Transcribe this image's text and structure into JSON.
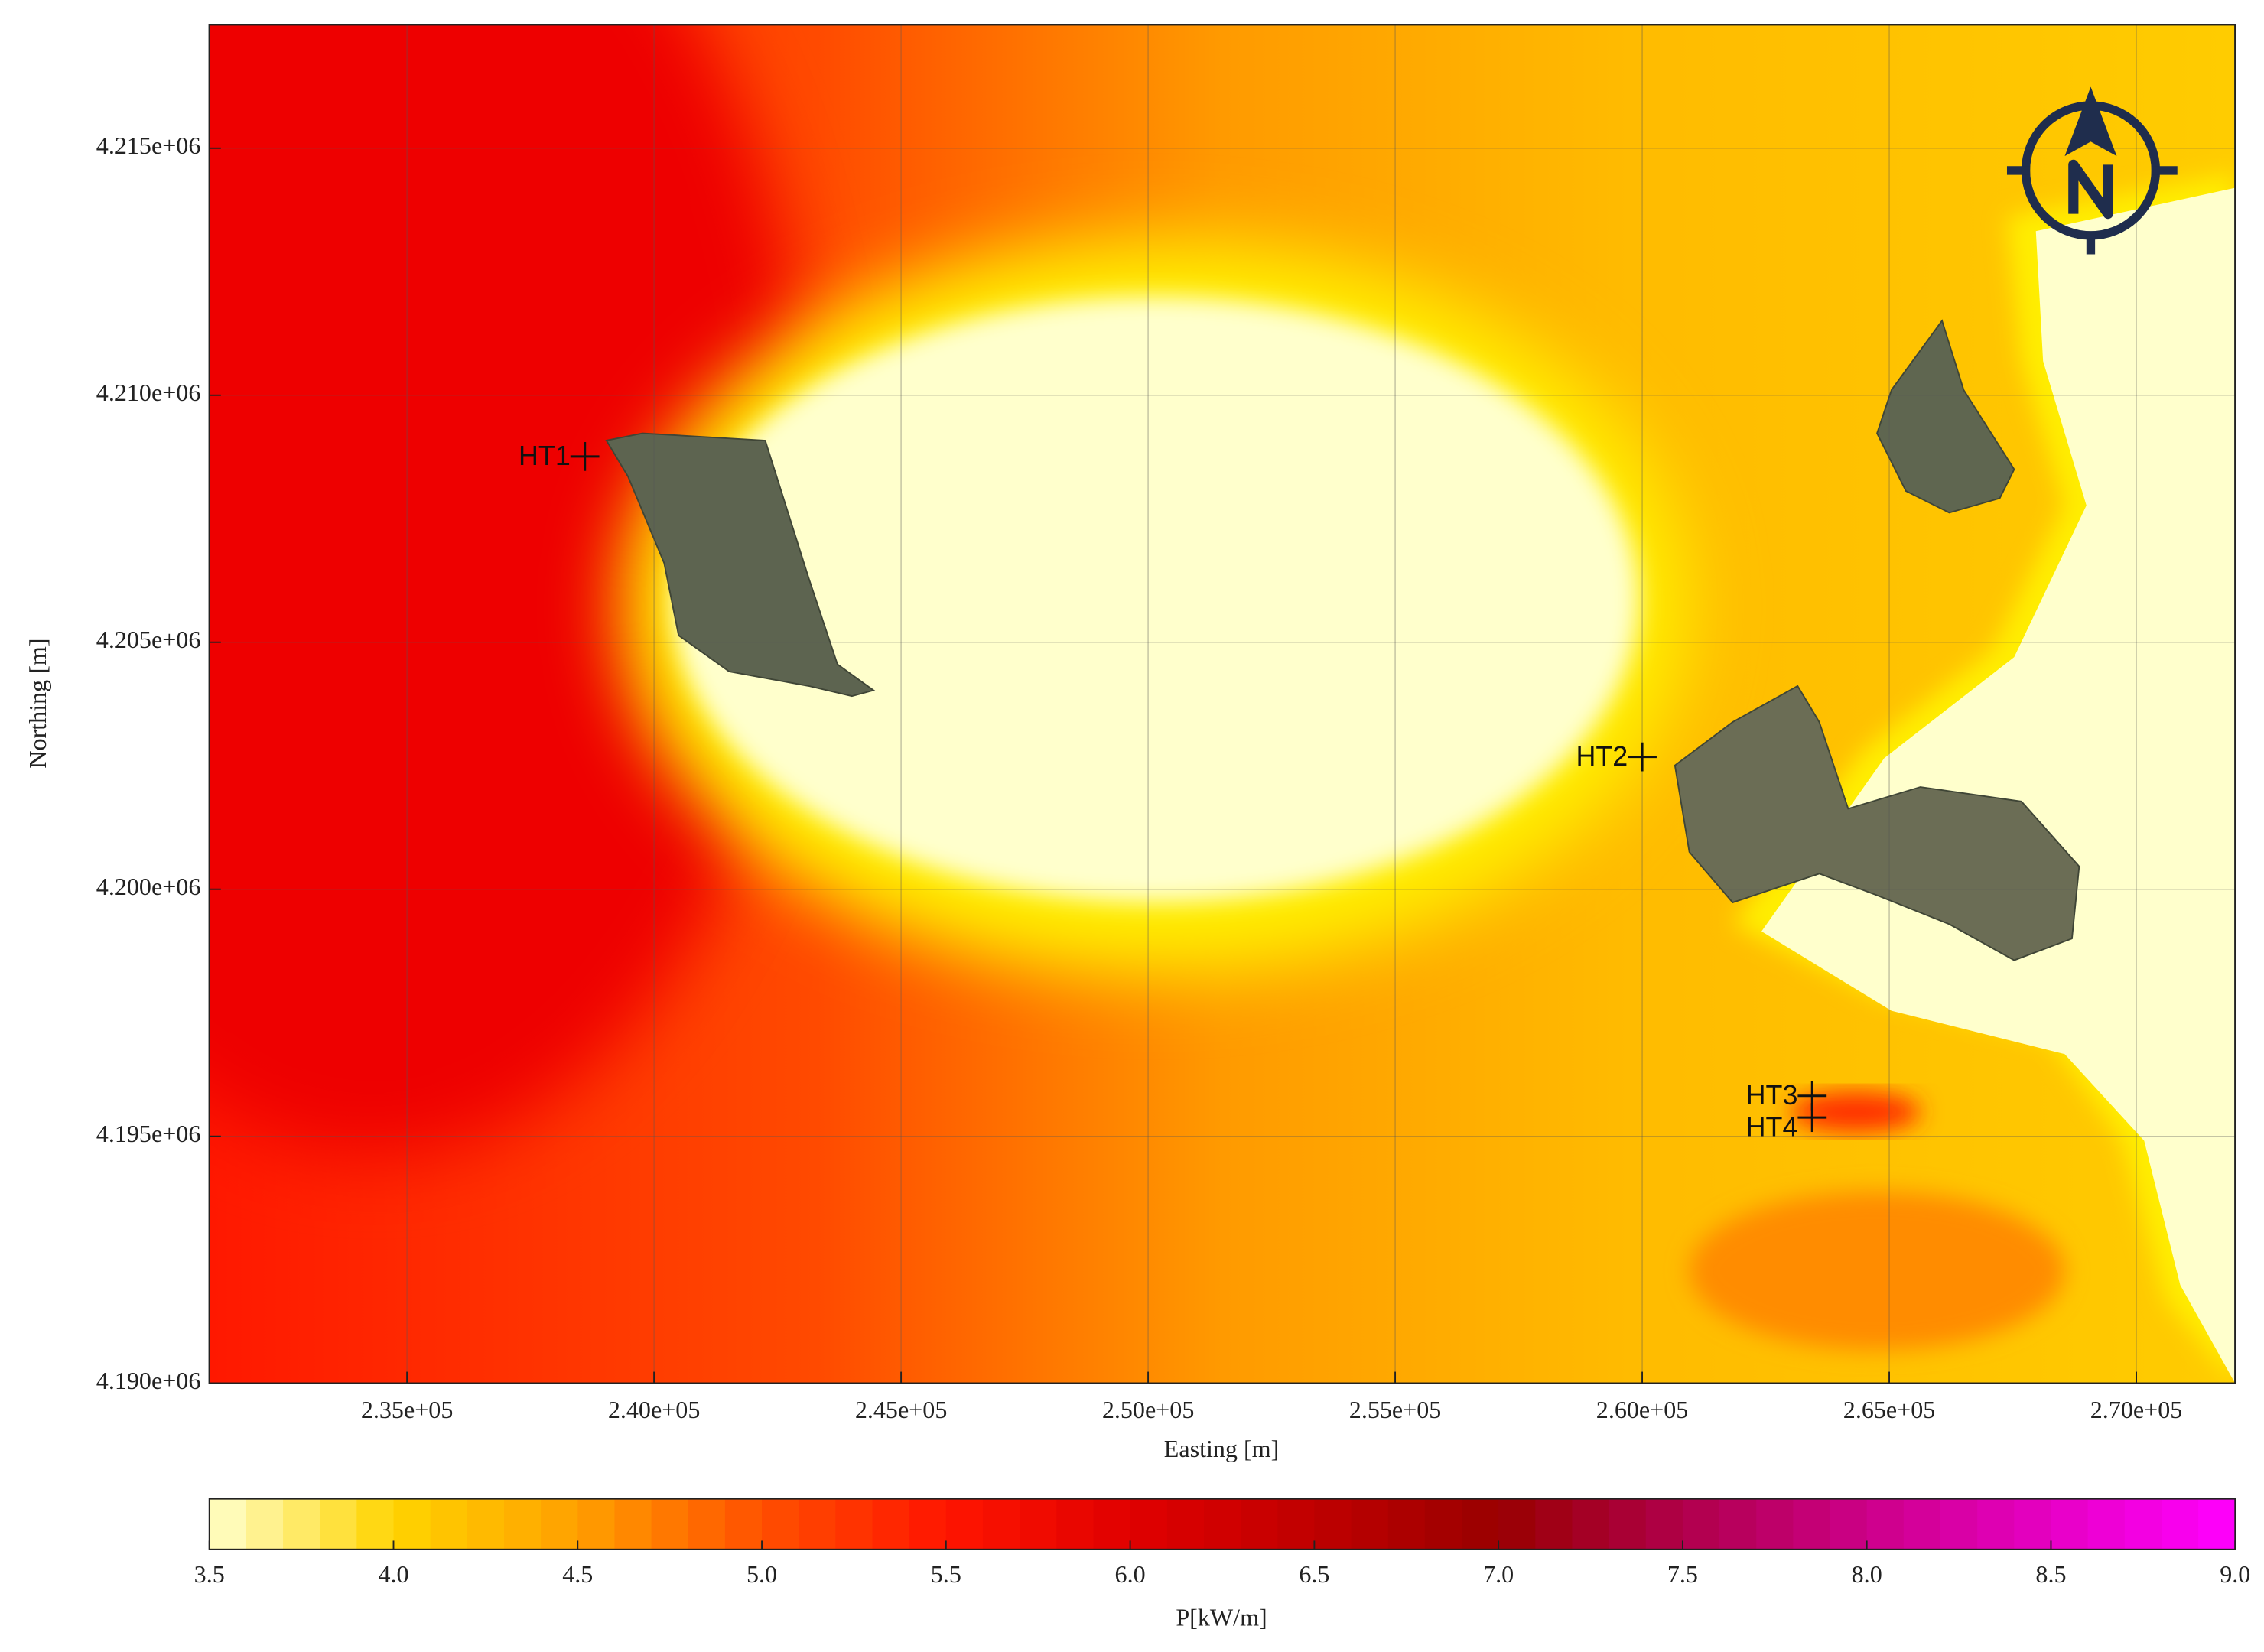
{
  "chart_data": {
    "type": "heatmap",
    "xlabel": "Easting [m]",
    "ylabel": "Northing [m]",
    "xlim": [
      231000,
      272000
    ],
    "ylim": [
      4190000,
      4217500
    ],
    "xticks": [
      {
        "value": 235000,
        "label": "2.35e+05"
      },
      {
        "value": 240000,
        "label": "2.40e+05"
      },
      {
        "value": 245000,
        "label": "2.45e+05"
      },
      {
        "value": 250000,
        "label": "2.50e+05"
      },
      {
        "value": 255000,
        "label": "2.55e+05"
      },
      {
        "value": 260000,
        "label": "2.60e+05"
      },
      {
        "value": 265000,
        "label": "2.65e+05"
      },
      {
        "value": 270000,
        "label": "2.70e+05"
      }
    ],
    "yticks": [
      {
        "value": 4190000,
        "label": "4.190e+06"
      },
      {
        "value": 4195000,
        "label": "4.195e+06"
      },
      {
        "value": 4200000,
        "label": "4.200e+06"
      },
      {
        "value": 4205000,
        "label": "4.205e+06"
      },
      {
        "value": 4210000,
        "label": "4.210e+06"
      },
      {
        "value": 4215000,
        "label": "4.215e+06"
      }
    ],
    "grid": true,
    "points": [
      {
        "label": "HT1",
        "x": 238600,
        "y": 4208760
      },
      {
        "label": "HT2",
        "x": 260000,
        "y": 4202680
      },
      {
        "label": "HT3",
        "x": 263440,
        "y": 4195820
      },
      {
        "label": "HT4",
        "x": 263440,
        "y": 4195380
      }
    ],
    "colorbar": {
      "label": "P[kW/m]",
      "lim": [
        3.5,
        9.0
      ],
      "ticks": [
        3.5,
        {
          "value": 4,
          "label": "4.0"
        },
        4.5,
        {
          "value": 5,
          "label": "5.0"
        },
        5.5,
        {
          "value": 6,
          "label": "6.0"
        },
        6.5,
        {
          "value": 7,
          "label": "7.0"
        },
        7.5,
        {
          "value": 8,
          "label": "8.0"
        },
        8.5,
        {
          "value": 9,
          "label": "9.0"
        }
      ],
      "colors": [
        "#ffffcc",
        "#ffd400",
        "#ffa000",
        "#ff5000",
        "#ff1500",
        "#e00000",
        "#bf0000",
        "#990000",
        "#b0004a",
        "#cc0088",
        "#e600c4",
        "#ff00ff"
      ]
    }
  }
}
